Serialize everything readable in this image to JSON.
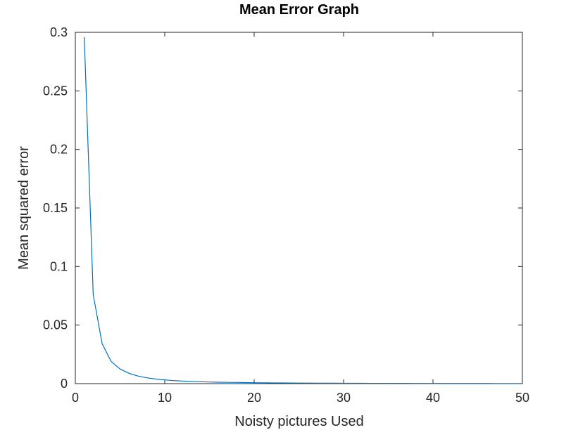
{
  "chart_data": {
    "type": "line",
    "title": "Mean Error Graph",
    "xlabel": "Noisty pictures Used",
    "ylabel": "Mean squared error",
    "xlim": [
      0,
      50
    ],
    "ylim": [
      0,
      0.3
    ],
    "x_ticks": [
      0,
      10,
      20,
      30,
      40,
      50
    ],
    "y_ticks": [
      0,
      0.05,
      0.1,
      0.15,
      0.2,
      0.25,
      0.3
    ],
    "x_tick_labels": [
      "0",
      "10",
      "20",
      "30",
      "40",
      "50"
    ],
    "y_tick_labels": [
      "0",
      "0.05",
      "0.1",
      "0.15",
      "0.2",
      "0.25",
      "0.3"
    ],
    "grid": false,
    "box": true,
    "series": [
      {
        "color": "#0072bd",
        "x": [
          1,
          2,
          3,
          4,
          5,
          6,
          7,
          8,
          9,
          10,
          11,
          12,
          13,
          14,
          15,
          16,
          17,
          18,
          19,
          20,
          21,
          22,
          23,
          24,
          25,
          26,
          27,
          28,
          29,
          30,
          31,
          32,
          33,
          34,
          35,
          36,
          37,
          38,
          39,
          40,
          41,
          42,
          43,
          44,
          45,
          46,
          47,
          48,
          49,
          50
        ],
        "y": [
          0.296,
          0.076,
          0.034,
          0.019,
          0.0125,
          0.0088,
          0.0065,
          0.005,
          0.0039,
          0.0032,
          0.0026,
          0.0022,
          0.0019,
          0.0016,
          0.0014,
          0.0012,
          0.0011,
          0.001,
          0.0009,
          0.0008,
          0.00072,
          0.00065,
          0.00059,
          0.00054,
          0.00049,
          0.00045,
          0.00042,
          0.00038,
          0.00036,
          0.00033,
          0.00031,
          0.00029,
          0.00027,
          0.00025,
          0.00024,
          0.00022,
          0.00021,
          0.0002,
          0.00019,
          0.00018,
          0.00017,
          0.00016,
          0.00015,
          0.00014,
          0.00014,
          0.00013,
          0.00012,
          0.00012,
          0.00011,
          0.00011
        ]
      }
    ]
  }
}
